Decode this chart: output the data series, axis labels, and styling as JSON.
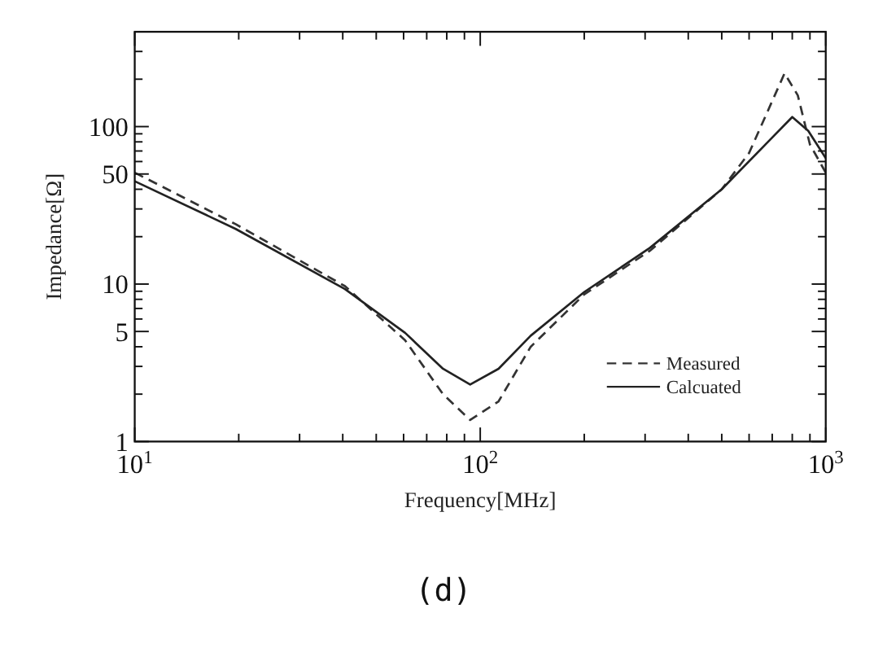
{
  "chart_data": {
    "type": "line",
    "xlabel": "Frequency[MHz]",
    "ylabel": "Impedance[Ω]",
    "annotations": [
      "(d)"
    ],
    "log": "xy",
    "legend": "bottom right",
    "grid": false,
    "xlim": [
      10,
      1000
    ],
    "ylim": [
      1,
      400
    ],
    "xticks": [
      {
        "value": 10,
        "label": "10$^{1}$"
      },
      {
        "value": 20,
        "label": null
      },
      {
        "value": 30,
        "label": null
      },
      {
        "value": 40,
        "label": null
      },
      {
        "value": 50,
        "label": null
      },
      {
        "value": 60,
        "label": null
      },
      {
        "value": 70,
        "label": null
      },
      {
        "value": 80,
        "label": null
      },
      {
        "value": 90,
        "label": null
      },
      {
        "value": 100,
        "label": "10$^{2}$"
      },
      {
        "value": 200,
        "label": null
      },
      {
        "value": 300,
        "label": null
      },
      {
        "value": 400,
        "label": null
      },
      {
        "value": 500,
        "label": null
      },
      {
        "value": 600,
        "label": null
      },
      {
        "value": 700,
        "label": null
      },
      {
        "value": 800,
        "label": null
      },
      {
        "value": 900,
        "label": null
      },
      {
        "value": 1000,
        "label": "10$^{3}$"
      }
    ],
    "yticks": [
      1,
      {
        "value": 2,
        "label": null
      },
      {
        "value": 3,
        "label": null
      },
      {
        "value": 4,
        "label": null
      },
      5,
      {
        "value": 6,
        "label": null
      },
      {
        "value": 7,
        "label": null
      },
      {
        "value": 8,
        "label": null
      },
      {
        "value": 9,
        "label": null
      },
      10,
      {
        "value": 20,
        "label": null
      },
      {
        "value": 30,
        "label": null
      },
      {
        "value": 40,
        "label": null
      },
      50,
      {
        "value": 60,
        "label": null
      },
      {
        "value": 70,
        "label": null
      },
      {
        "value": 80,
        "label": null
      },
      {
        "value": 90,
        "label": null
      },
      100,
      {
        "value": 200,
        "label": null
      },
      {
        "value": 300,
        "label": null
      }
    ],
    "series": [
      {
        "name": "Measured",
        "color": "#333333",
        "line_style": "dashed",
        "x": [
          10,
          19.6,
          40.6,
          60.6,
          78,
          93.5,
          113,
          140,
          200,
          310,
          500,
          600,
          760,
          830,
          900,
          1000
        ],
        "values": [
          51,
          24,
          9.7,
          4.4,
          2.0,
          1.37,
          1.8,
          4.0,
          8.6,
          16.3,
          40,
          68,
          218,
          158,
          77,
          51
        ]
      },
      {
        "name": "Calcuated",
        "color": "#222222",
        "line_style": "solid",
        "x": [
          10,
          19.6,
          40.6,
          60.6,
          78,
          93.5,
          113,
          140,
          200,
          310,
          500,
          692,
          800,
          890,
          1000
        ],
        "values": [
          45,
          22.4,
          9.3,
          4.9,
          2.9,
          2.3,
          2.9,
          4.7,
          8.9,
          17,
          40,
          83,
          115,
          94,
          63
        ]
      }
    ]
  }
}
